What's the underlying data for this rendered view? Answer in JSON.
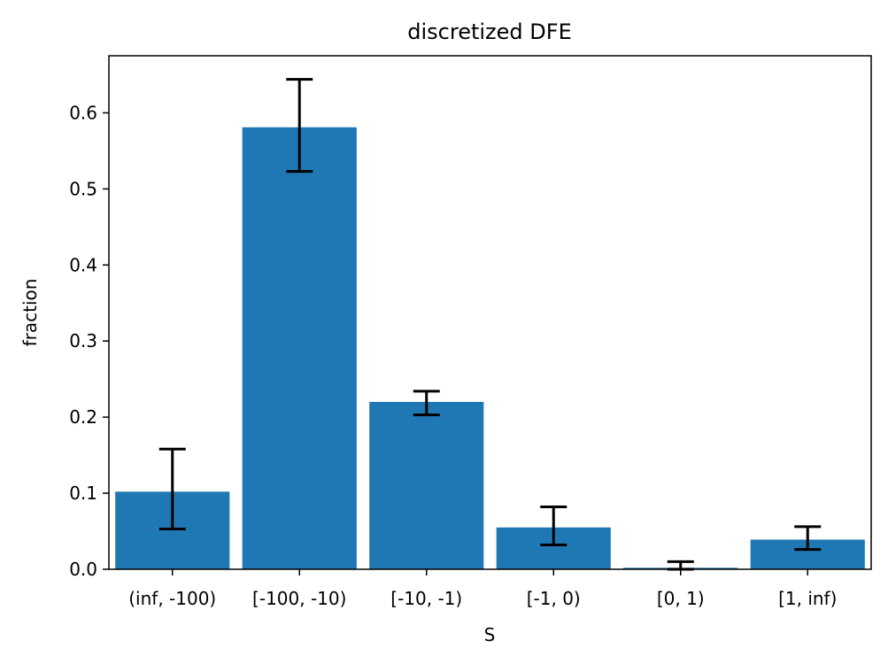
{
  "chart_data": {
    "type": "bar",
    "title": "discretized DFE",
    "xlabel": "S",
    "ylabel": "fraction",
    "categories": [
      "(inf, -100)",
      "[-100, -10)",
      "[-10, -1)",
      "[-1, 0)",
      "[0, 1)",
      "[1, inf)"
    ],
    "values": [
      0.102,
      0.581,
      0.22,
      0.055,
      0.002,
      0.039
    ],
    "error_low": [
      0.053,
      0.523,
      0.203,
      0.032,
      0.0,
      0.026
    ],
    "error_high": [
      0.158,
      0.644,
      0.234,
      0.082,
      0.01,
      0.056
    ],
    "ylim": [
      0,
      0.675
    ],
    "yticks": [
      0.0,
      0.1,
      0.2,
      0.3,
      0.4,
      0.5,
      0.6
    ],
    "ytick_labels": [
      "0.0",
      "0.1",
      "0.2",
      "0.3",
      "0.4",
      "0.5",
      "0.6"
    ],
    "bar_color": "#1f77b4",
    "errorbar_color": "#000000",
    "grid": false,
    "legend": "none"
  }
}
